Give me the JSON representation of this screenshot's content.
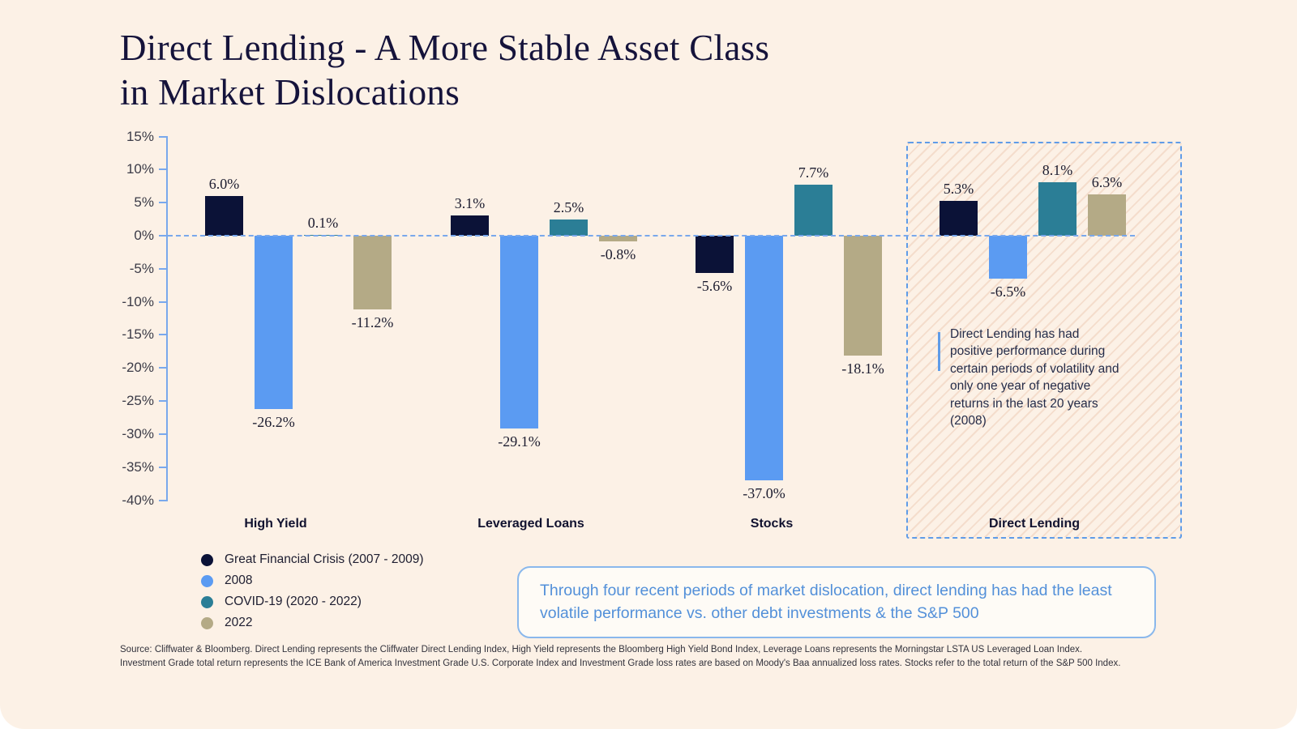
{
  "title": {
    "line1": "Direct Lending - A More Stable Asset Class",
    "line2": "in Market Dislocations"
  },
  "chart_data": {
    "type": "bar",
    "categories": [
      "High Yield",
      "Leveraged Loans",
      "Stocks",
      "Direct Lending"
    ],
    "series": [
      {
        "name": "Great Financial Crisis (2007 - 2009)",
        "color": "#0b1237",
        "values": [
          6.0,
          3.1,
          -5.6,
          5.3
        ]
      },
      {
        "name": "2008",
        "color": "#5b9bf2",
        "values": [
          -26.2,
          -29.1,
          -37.0,
          -6.5
        ]
      },
      {
        "name": "COVID-19 (2020 - 2022)",
        "color": "#2b7e96",
        "values": [
          0.1,
          2.5,
          7.7,
          8.1
        ]
      },
      {
        "name": "2022",
        "color": "#b4aa86",
        "values": [
          -11.2,
          -0.8,
          -18.1,
          6.3
        ]
      }
    ],
    "y_ticks": [
      "15%",
      "10%",
      "5%",
      "0%",
      "-5%",
      "-10%",
      "-15%",
      "-20%",
      "-25%",
      "-30%",
      "-35%",
      "-40%"
    ],
    "ylim": [
      -40,
      15
    ],
    "grid": false,
    "legend_position": "bottom-left",
    "value_label_format": "one-decimal-percent",
    "highlight": {
      "category": "Direct Lending",
      "note": "Direct Lending has had positive performance during certain periods of volatility and only one year of negative returns in the last 20 years (2008)"
    }
  },
  "quote_box": {
    "text": "Through four recent periods of market dislocation, direct lending has had the least volatile performance vs. other debt investments & the S&P 500"
  },
  "source": {
    "line1": "Source: Cliffwater & Bloomberg. Direct Lending represents the Cliffwater Direct Lending Index, High Yield represents the Bloomberg High Yield Bond Index, Leverage Loans represents the Morningstar LSTA US Leveraged Loan Index.",
    "line2": "Investment Grade total return represents the ICE Bank of America Investment Grade U.S. Corporate Index and Investment Grade loss rates are based on Moody's Baa annualized loss rates. Stocks refer to the total return of the S&P 500 Index."
  },
  "colors": {
    "background": "#fcf1e6",
    "axis_blue": "#79a8ec",
    "highlight_border_blue": "#5f9ce8",
    "quote_text_blue": "#5390d9",
    "title_navy": "#15133b"
  }
}
